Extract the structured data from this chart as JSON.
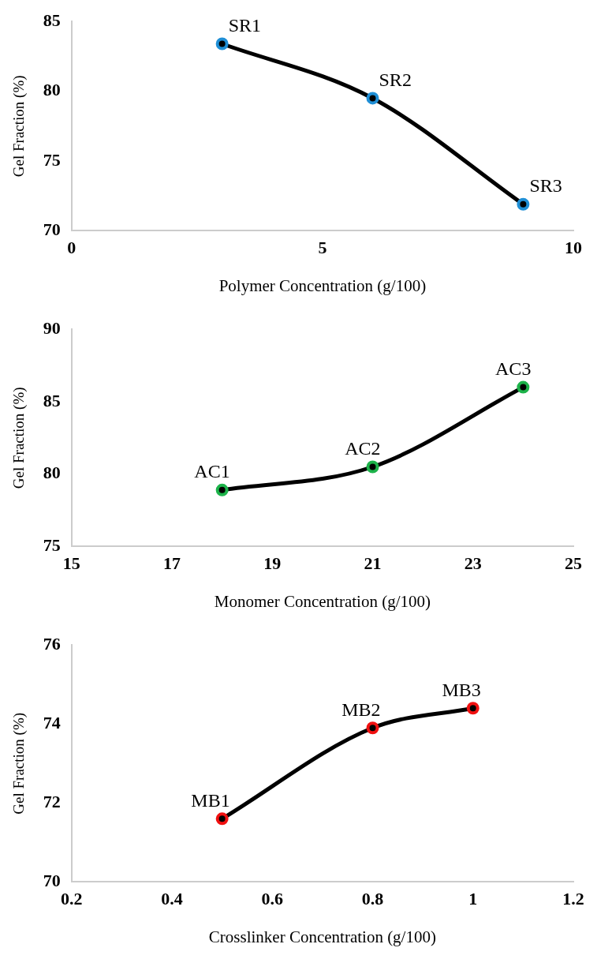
{
  "chart_data": [
    {
      "type": "line",
      "xlabel": "Polymer Concentration (g/100)",
      "ylabel": "Gel Fraction (%)",
      "x": [
        3,
        6,
        9
      ],
      "series": [
        {
          "color": "#1f8fd6",
          "values": [
            83.4,
            79.5,
            71.9
          ]
        }
      ],
      "xlim": [
        0,
        10
      ],
      "xticks": [
        0,
        5,
        10
      ],
      "ylim": [
        70,
        85
      ],
      "yticks": [
        70,
        75,
        80,
        85
      ],
      "grid": false,
      "legend": false,
      "marker": "circle",
      "line_style": "solid",
      "annotations": [
        {
          "text": "SR1",
          "x": 3,
          "y": 83.4
        },
        {
          "text": "SR2",
          "x": 6,
          "y": 79.5
        },
        {
          "text": "SR3",
          "x": 9,
          "y": 71.9
        }
      ]
    },
    {
      "type": "line",
      "xlabel": "Monomer Concentration (g/100)",
      "ylabel": "Gel Fraction (%)",
      "x": [
        18,
        21,
        24
      ],
      "series": [
        {
          "color": "#1db34a",
          "values": [
            78.9,
            80.5,
            86.0
          ]
        }
      ],
      "xlim": [
        15,
        25
      ],
      "xticks": [
        15,
        17,
        19,
        21,
        23,
        25
      ],
      "ylim": [
        75,
        90
      ],
      "yticks": [
        75,
        80,
        85,
        90
      ],
      "grid": false,
      "legend": false,
      "marker": "circle",
      "line_style": "solid",
      "annotations": [
        {
          "text": "AC1",
          "x": 18,
          "y": 78.9
        },
        {
          "text": "AC2",
          "x": 21,
          "y": 80.5
        },
        {
          "text": "AC3",
          "x": 24,
          "y": 86.0
        }
      ]
    },
    {
      "type": "line",
      "xlabel": "Crosslinker Concentration (g/100)",
      "ylabel": "Gel Fraction (%)",
      "x": [
        0.5,
        0.8,
        1
      ],
      "series": [
        {
          "color": "#f01010",
          "values": [
            71.6,
            73.9,
            74.4
          ]
        }
      ],
      "xlim": [
        0.2,
        1.2
      ],
      "xticks": [
        0.2,
        0.4,
        0.6,
        0.8,
        1,
        1.2
      ],
      "ylim": [
        70,
        76
      ],
      "yticks": [
        70,
        72,
        74,
        76
      ],
      "grid": false,
      "legend": false,
      "marker": "circle",
      "line_style": "solid",
      "annotations": [
        {
          "text": "MB1",
          "x": 0.5,
          "y": 71.6
        },
        {
          "text": "MB2",
          "x": 0.8,
          "y": 73.9
        },
        {
          "text": "MB3",
          "x": 1,
          "y": 74.4
        }
      ]
    }
  ]
}
